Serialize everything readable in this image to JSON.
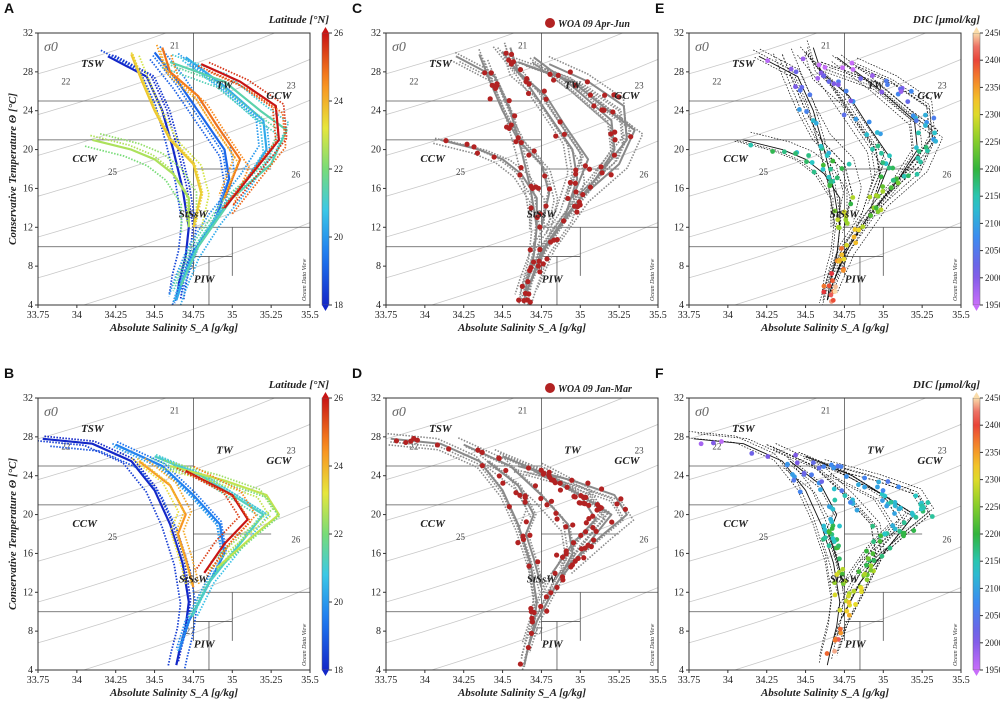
{
  "chart_data": {
    "type": "scatter",
    "axes": {
      "xlabel": "Absolute Salinity S_A [g/kg]",
      "ylabel": "Conservative Temperature Θ [°C]",
      "xlim": [
        33.75,
        35.5
      ],
      "ylim": [
        4,
        32
      ],
      "xticks": [
        "33.75",
        "34",
        "34.25",
        "34.5",
        "34.75",
        "35",
        "35.25",
        "35.5"
      ],
      "yticks": [
        "4",
        "8",
        "12",
        "16",
        "20",
        "24",
        "28",
        "32"
      ],
      "sigma_label": "σ0",
      "credit": "Ocean Data View"
    },
    "isopycnals": [
      {
        "label": "21",
        "anchor": [
          34.6,
          30.4
        ]
      },
      {
        "label": "22",
        "anchor": [
          33.9,
          26.7
        ]
      },
      {
        "label": "23",
        "anchor": [
          35.35,
          26.3
        ]
      },
      {
        "label": "25",
        "anchor": [
          34.2,
          17.4
        ]
      },
      {
        "label": "26",
        "anchor": [
          35.38,
          17.1
        ]
      },
      {
        "label": "27",
        "anchor": [
          34.7,
          7.7
        ]
      }
    ],
    "water_masses": [
      {
        "label": "TSW",
        "position": [
          34.1,
          28.5
        ]
      },
      {
        "label": "TW",
        "position": [
          34.95,
          26.3
        ]
      },
      {
        "label": "GCW",
        "position": [
          35.3,
          25.2
        ]
      },
      {
        "label": "CCW",
        "position": [
          34.05,
          18.7
        ]
      },
      {
        "label": "StSsW",
        "position": [
          34.75,
          13.0
        ]
      },
      {
        "label": "PIW",
        "position": [
          34.82,
          6.3
        ]
      }
    ],
    "panels": [
      {
        "letter": "A",
        "colorbar_title": "Latitude [°N]",
        "legend": ""
      },
      {
        "letter": "B",
        "colorbar_title": "Latitude [°N]",
        "legend": ""
      },
      {
        "letter": "C",
        "colorbar_title": "",
        "legend": "WOA 09 Apr-Jun"
      },
      {
        "letter": "D",
        "colorbar_title": "",
        "legend": "WOA 09 Jan-Mar"
      },
      {
        "letter": "E",
        "colorbar_title": "DIC [µmol/kg]",
        "legend": ""
      },
      {
        "letter": "F",
        "colorbar_title": "DIC [µmol/kg]",
        "legend": ""
      }
    ],
    "latitude_colorbar": {
      "ticks": [
        "26",
        "24",
        "22",
        "20",
        "18"
      ],
      "range": [
        18,
        26
      ]
    },
    "dic_colorbar": {
      "ticks": [
        "2450",
        "2400",
        "2350",
        "2300",
        "2250",
        "2200",
        "2150",
        "2100",
        "2050",
        "2000",
        "1950"
      ],
      "range": [
        1950,
        2450
      ]
    },
    "profiles_top": [
      [
        [
          34.2,
          29.6
        ],
        [
          34.45,
          27.5
        ],
        [
          34.55,
          24.0
        ],
        [
          34.62,
          20.0
        ],
        [
          34.68,
          16.0
        ],
        [
          34.72,
          12.0
        ],
        [
          34.7,
          9.0
        ],
        [
          34.66,
          6.5
        ],
        [
          34.64,
          4.5
        ]
      ],
      [
        [
          34.5,
          30.0
        ],
        [
          34.65,
          27.0
        ],
        [
          34.8,
          23.5
        ],
        [
          34.95,
          20.0
        ],
        [
          34.98,
          17.0
        ],
        [
          34.9,
          13.0
        ],
        [
          34.75,
          9.5
        ],
        [
          34.67,
          6.0
        ],
        [
          34.64,
          4.5
        ]
      ],
      [
        [
          34.7,
          29.5
        ],
        [
          34.95,
          26.5
        ],
        [
          35.2,
          23.0
        ],
        [
          35.22,
          20.0
        ],
        [
          35.1,
          17.0
        ],
        [
          34.9,
          13.0
        ],
        [
          34.76,
          9.5
        ],
        [
          34.67,
          6.0
        ],
        [
          34.64,
          4.5
        ]
      ],
      [
        [
          34.6,
          29.0
        ],
        [
          34.95,
          27.0
        ],
        [
          35.18,
          24.0
        ],
        [
          35.35,
          22.0
        ],
        [
          35.25,
          18.5
        ],
        [
          35.0,
          15.0
        ],
        [
          34.78,
          10.0
        ],
        [
          34.67,
          6.0
        ]
      ],
      [
        [
          34.1,
          21.0
        ],
        [
          34.35,
          20.0
        ],
        [
          34.5,
          19.0
        ],
        [
          34.62,
          17.5
        ],
        [
          34.72,
          15.0
        ],
        [
          34.72,
          12.0
        ]
      ],
      [
        [
          34.35,
          29.8
        ],
        [
          34.42,
          27.0
        ],
        [
          34.5,
          24.0
        ],
        [
          34.6,
          21.0
        ],
        [
          34.75,
          18.5
        ],
        [
          34.8,
          15.5
        ],
        [
          34.75,
          12.0
        ]
      ],
      [
        [
          34.55,
          30.5
        ],
        [
          34.6,
          28.0
        ],
        [
          34.78,
          25.5
        ],
        [
          34.9,
          22.5
        ],
        [
          35.05,
          19.0
        ],
        [
          34.95,
          15.0
        ]
      ],
      [
        [
          34.8,
          28.8
        ],
        [
          35.05,
          27.0
        ],
        [
          35.28,
          24.5
        ],
        [
          35.3,
          21.0
        ],
        [
          35.15,
          18.0
        ],
        [
          34.95,
          14.0
        ]
      ]
    ],
    "profiles_bottom": [
      [
        [
          33.78,
          27.8
        ],
        [
          34.1,
          27.3
        ],
        [
          34.35,
          25.5
        ],
        [
          34.5,
          22.5
        ],
        [
          34.6,
          19.0
        ],
        [
          34.68,
          15.0
        ],
        [
          34.72,
          11.0
        ],
        [
          34.7,
          8.5
        ],
        [
          34.66,
          6.0
        ],
        [
          34.64,
          4.5
        ]
      ],
      [
        [
          34.25,
          27.2
        ],
        [
          34.55,
          25.0
        ],
        [
          34.75,
          22.0
        ],
        [
          34.92,
          19.0
        ],
        [
          34.95,
          16.0
        ],
        [
          34.82,
          12.0
        ],
        [
          34.72,
          9.0
        ],
        [
          34.66,
          6.0
        ]
      ],
      [
        [
          34.5,
          26.0
        ],
        [
          34.8,
          24.0
        ],
        [
          35.05,
          21.5
        ],
        [
          35.2,
          20.0
        ],
        [
          35.05,
          17.0
        ],
        [
          34.85,
          13.0
        ],
        [
          34.74,
          9.5
        ]
      ],
      [
        [
          34.6,
          25.0
        ],
        [
          34.95,
          23.5
        ],
        [
          35.22,
          22.0
        ],
        [
          35.3,
          20.0
        ],
        [
          35.15,
          18.0
        ],
        [
          34.9,
          14.5
        ]
      ],
      [
        [
          34.4,
          25.5
        ],
        [
          34.6,
          23.0
        ],
        [
          34.7,
          20.0
        ],
        [
          34.65,
          18.0
        ],
        [
          34.7,
          15.5
        ],
        [
          34.75,
          12.5
        ]
      ],
      [
        [
          34.7,
          24.5
        ],
        [
          35.0,
          22.0
        ],
        [
          35.1,
          19.5
        ],
        [
          34.95,
          17.0
        ],
        [
          34.82,
          14.0
        ]
      ]
    ]
  }
}
